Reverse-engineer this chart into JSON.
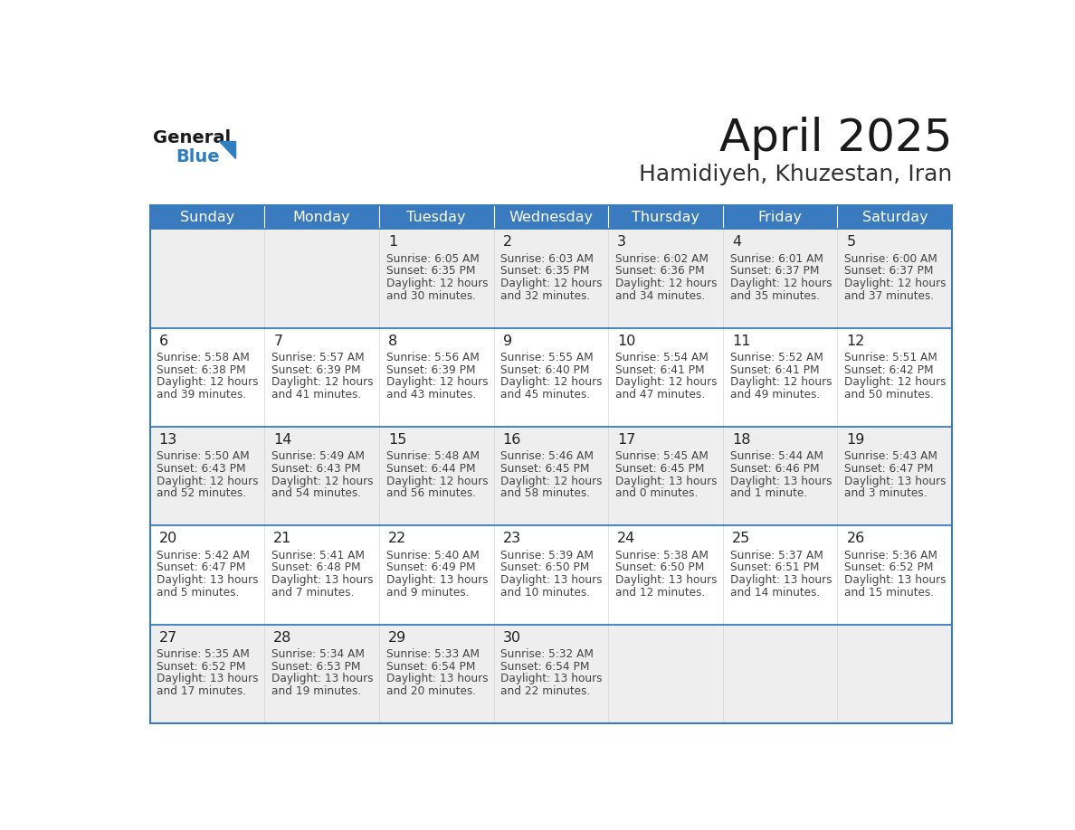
{
  "title": "April 2025",
  "subtitle": "Hamidiyeh, Khuzestan, Iran",
  "days_of_week": [
    "Sunday",
    "Monday",
    "Tuesday",
    "Wednesday",
    "Thursday",
    "Friday",
    "Saturday"
  ],
  "header_bg": "#3a7abf",
  "header_text": "#ffffff",
  "row_bg_odd": "#eeeeee",
  "row_bg_even": "#ffffff",
  "cell_border_color": "#3a7abf",
  "cell_divider_color": "#cccccc",
  "day_number_color": "#222222",
  "cell_text_color": "#444444",
  "title_color": "#1a1a1a",
  "subtitle_color": "#333333",
  "logo_general_color": "#1a1a1a",
  "logo_blue_color": "#2f7fc0",
  "weeks": [
    [
      {
        "day": null,
        "info": null
      },
      {
        "day": null,
        "info": null
      },
      {
        "day": 1,
        "info": {
          "sunrise": "6:05 AM",
          "sunset": "6:35 PM",
          "daylight_line1": "Daylight: 12 hours",
          "daylight_line2": "and 30 minutes."
        }
      },
      {
        "day": 2,
        "info": {
          "sunrise": "6:03 AM",
          "sunset": "6:35 PM",
          "daylight_line1": "Daylight: 12 hours",
          "daylight_line2": "and 32 minutes."
        }
      },
      {
        "day": 3,
        "info": {
          "sunrise": "6:02 AM",
          "sunset": "6:36 PM",
          "daylight_line1": "Daylight: 12 hours",
          "daylight_line2": "and 34 minutes."
        }
      },
      {
        "day": 4,
        "info": {
          "sunrise": "6:01 AM",
          "sunset": "6:37 PM",
          "daylight_line1": "Daylight: 12 hours",
          "daylight_line2": "and 35 minutes."
        }
      },
      {
        "day": 5,
        "info": {
          "sunrise": "6:00 AM",
          "sunset": "6:37 PM",
          "daylight_line1": "Daylight: 12 hours",
          "daylight_line2": "and 37 minutes."
        }
      }
    ],
    [
      {
        "day": 6,
        "info": {
          "sunrise": "5:58 AM",
          "sunset": "6:38 PM",
          "daylight_line1": "Daylight: 12 hours",
          "daylight_line2": "and 39 minutes."
        }
      },
      {
        "day": 7,
        "info": {
          "sunrise": "5:57 AM",
          "sunset": "6:39 PM",
          "daylight_line1": "Daylight: 12 hours",
          "daylight_line2": "and 41 minutes."
        }
      },
      {
        "day": 8,
        "info": {
          "sunrise": "5:56 AM",
          "sunset": "6:39 PM",
          "daylight_line1": "Daylight: 12 hours",
          "daylight_line2": "and 43 minutes."
        }
      },
      {
        "day": 9,
        "info": {
          "sunrise": "5:55 AM",
          "sunset": "6:40 PM",
          "daylight_line1": "Daylight: 12 hours",
          "daylight_line2": "and 45 minutes."
        }
      },
      {
        "day": 10,
        "info": {
          "sunrise": "5:54 AM",
          "sunset": "6:41 PM",
          "daylight_line1": "Daylight: 12 hours",
          "daylight_line2": "and 47 minutes."
        }
      },
      {
        "day": 11,
        "info": {
          "sunrise": "5:52 AM",
          "sunset": "6:41 PM",
          "daylight_line1": "Daylight: 12 hours",
          "daylight_line2": "and 49 minutes."
        }
      },
      {
        "day": 12,
        "info": {
          "sunrise": "5:51 AM",
          "sunset": "6:42 PM",
          "daylight_line1": "Daylight: 12 hours",
          "daylight_line2": "and 50 minutes."
        }
      }
    ],
    [
      {
        "day": 13,
        "info": {
          "sunrise": "5:50 AM",
          "sunset": "6:43 PM",
          "daylight_line1": "Daylight: 12 hours",
          "daylight_line2": "and 52 minutes."
        }
      },
      {
        "day": 14,
        "info": {
          "sunrise": "5:49 AM",
          "sunset": "6:43 PM",
          "daylight_line1": "Daylight: 12 hours",
          "daylight_line2": "and 54 minutes."
        }
      },
      {
        "day": 15,
        "info": {
          "sunrise": "5:48 AM",
          "sunset": "6:44 PM",
          "daylight_line1": "Daylight: 12 hours",
          "daylight_line2": "and 56 minutes."
        }
      },
      {
        "day": 16,
        "info": {
          "sunrise": "5:46 AM",
          "sunset": "6:45 PM",
          "daylight_line1": "Daylight: 12 hours",
          "daylight_line2": "and 58 minutes."
        }
      },
      {
        "day": 17,
        "info": {
          "sunrise": "5:45 AM",
          "sunset": "6:45 PM",
          "daylight_line1": "Daylight: 13 hours",
          "daylight_line2": "and 0 minutes."
        }
      },
      {
        "day": 18,
        "info": {
          "sunrise": "5:44 AM",
          "sunset": "6:46 PM",
          "daylight_line1": "Daylight: 13 hours",
          "daylight_line2": "and 1 minute."
        }
      },
      {
        "day": 19,
        "info": {
          "sunrise": "5:43 AM",
          "sunset": "6:47 PM",
          "daylight_line1": "Daylight: 13 hours",
          "daylight_line2": "and 3 minutes."
        }
      }
    ],
    [
      {
        "day": 20,
        "info": {
          "sunrise": "5:42 AM",
          "sunset": "6:47 PM",
          "daylight_line1": "Daylight: 13 hours",
          "daylight_line2": "and 5 minutes."
        }
      },
      {
        "day": 21,
        "info": {
          "sunrise": "5:41 AM",
          "sunset": "6:48 PM",
          "daylight_line1": "Daylight: 13 hours",
          "daylight_line2": "and 7 minutes."
        }
      },
      {
        "day": 22,
        "info": {
          "sunrise": "5:40 AM",
          "sunset": "6:49 PM",
          "daylight_line1": "Daylight: 13 hours",
          "daylight_line2": "and 9 minutes."
        }
      },
      {
        "day": 23,
        "info": {
          "sunrise": "5:39 AM",
          "sunset": "6:50 PM",
          "daylight_line1": "Daylight: 13 hours",
          "daylight_line2": "and 10 minutes."
        }
      },
      {
        "day": 24,
        "info": {
          "sunrise": "5:38 AM",
          "sunset": "6:50 PM",
          "daylight_line1": "Daylight: 13 hours",
          "daylight_line2": "and 12 minutes."
        }
      },
      {
        "day": 25,
        "info": {
          "sunrise": "5:37 AM",
          "sunset": "6:51 PM",
          "daylight_line1": "Daylight: 13 hours",
          "daylight_line2": "and 14 minutes."
        }
      },
      {
        "day": 26,
        "info": {
          "sunrise": "5:36 AM",
          "sunset": "6:52 PM",
          "daylight_line1": "Daylight: 13 hours",
          "daylight_line2": "and 15 minutes."
        }
      }
    ],
    [
      {
        "day": 27,
        "info": {
          "sunrise": "5:35 AM",
          "sunset": "6:52 PM",
          "daylight_line1": "Daylight: 13 hours",
          "daylight_line2": "and 17 minutes."
        }
      },
      {
        "day": 28,
        "info": {
          "sunrise": "5:34 AM",
          "sunset": "6:53 PM",
          "daylight_line1": "Daylight: 13 hours",
          "daylight_line2": "and 19 minutes."
        }
      },
      {
        "day": 29,
        "info": {
          "sunrise": "5:33 AM",
          "sunset": "6:54 PM",
          "daylight_line1": "Daylight: 13 hours",
          "daylight_line2": "and 20 minutes."
        }
      },
      {
        "day": 30,
        "info": {
          "sunrise": "5:32 AM",
          "sunset": "6:54 PM",
          "daylight_line1": "Daylight: 13 hours",
          "daylight_line2": "and 22 minutes."
        }
      },
      {
        "day": null,
        "info": null
      },
      {
        "day": null,
        "info": null
      },
      {
        "day": null,
        "info": null
      }
    ]
  ]
}
